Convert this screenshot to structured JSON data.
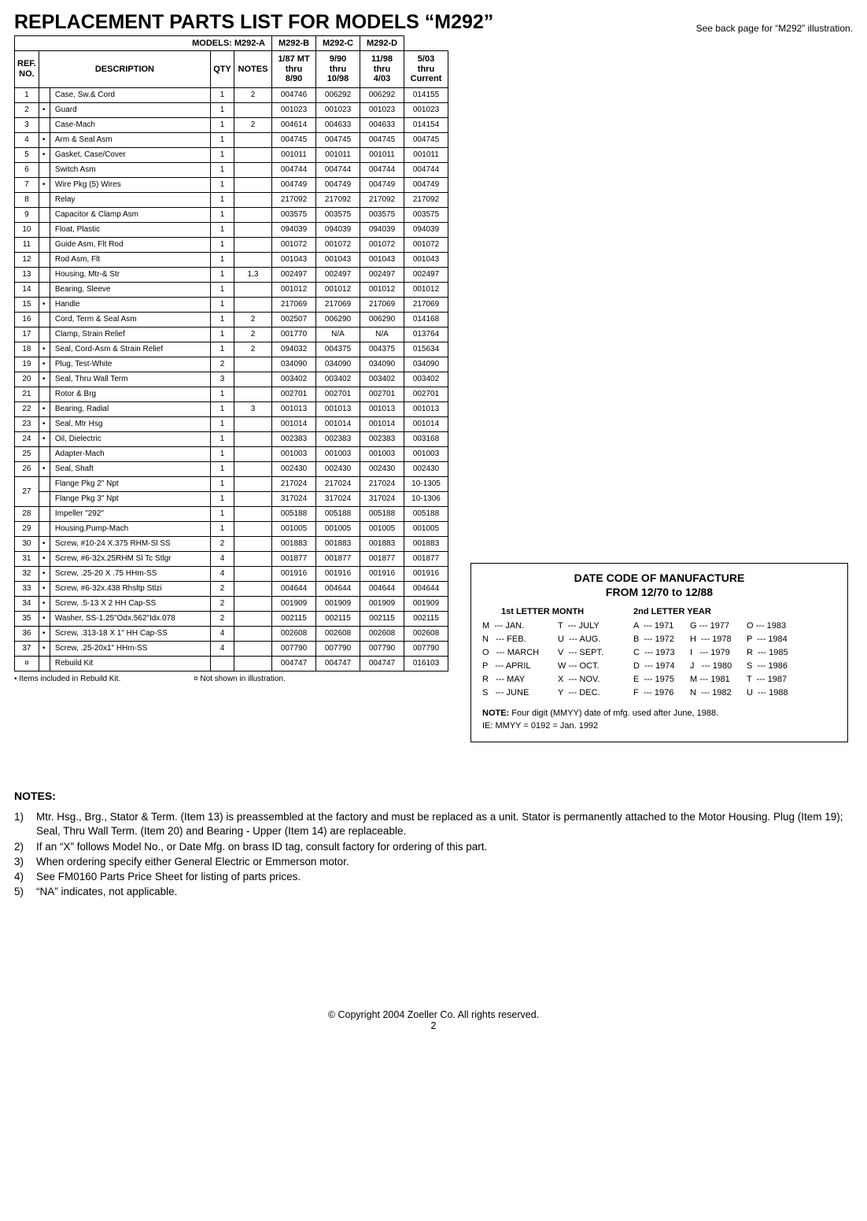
{
  "title": "REPLACEMENT PARTS LIST FOR MODELS “M292”",
  "see_back": "See back page for “M292” illustration.",
  "table": {
    "models_label": "MODELS: M292-A",
    "models": [
      "M292-B",
      "M292-C",
      "M292-D"
    ],
    "headers": {
      "ref": "REF.\nNO.",
      "desc": "DESCRIPTION",
      "qty": "QTY",
      "notes": "NOTES",
      "pn": [
        "1/87 MT\nthru\n8/90",
        "9/90\nthru\n10/98",
        "11/98\nthru\n4/03",
        "5/03\nthru\nCurrent"
      ]
    },
    "rows": [
      {
        "ref": "1",
        "b": "",
        "desc": "Case, Sw.& Cord",
        "qty": "1",
        "notes": "2",
        "pn": [
          "004746",
          "006292",
          "006292",
          "014155"
        ]
      },
      {
        "ref": "2",
        "b": "•",
        "desc": "Guard",
        "qty": "1",
        "notes": "",
        "pn": [
          "001023",
          "001023",
          "001023",
          "001023"
        ]
      },
      {
        "ref": "3",
        "b": "",
        "desc": "Case-Mach",
        "qty": "1",
        "notes": "2",
        "pn": [
          "004614",
          "004633",
          "004633",
          "014154"
        ]
      },
      {
        "ref": "4",
        "b": "•",
        "desc": "Arm & Seal Asm",
        "qty": "1",
        "notes": "",
        "pn": [
          "004745",
          "004745",
          "004745",
          "004745"
        ]
      },
      {
        "ref": "5",
        "b": "•",
        "desc": "Gasket, Case/Cover",
        "qty": "1",
        "notes": "",
        "pn": [
          "001011",
          "001011",
          "001011",
          "001011"
        ]
      },
      {
        "ref": "6",
        "b": "",
        "desc": "Switch Asm",
        "qty": "1",
        "notes": "",
        "pn": [
          "004744",
          "004744",
          "004744",
          "004744"
        ]
      },
      {
        "ref": "7",
        "b": "•",
        "desc": "Wire Pkg (5) Wires",
        "qty": "1",
        "notes": "",
        "pn": [
          "004749",
          "004749",
          "004749",
          "004749"
        ]
      },
      {
        "ref": "8",
        "b": "",
        "desc": "Relay",
        "qty": "1",
        "notes": "",
        "pn": [
          "217092",
          "217092",
          "217092",
          "217092"
        ]
      },
      {
        "ref": "9",
        "b": "",
        "desc": "Capacitor & Clamp Asm",
        "qty": "1",
        "notes": "",
        "pn": [
          "003575",
          "003575",
          "003575",
          "003575"
        ]
      },
      {
        "ref": "10",
        "b": "",
        "desc": "Float, Plastic",
        "qty": "1",
        "notes": "",
        "pn": [
          "094039",
          "094039",
          "094039",
          "094039"
        ]
      },
      {
        "ref": "11",
        "b": "",
        "desc": "Guide Asm, Flt Rod",
        "qty": "1",
        "notes": "",
        "pn": [
          "001072",
          "001072",
          "001072",
          "001072"
        ]
      },
      {
        "ref": "12",
        "b": "",
        "desc": "Rod Asm, Flt",
        "qty": "1",
        "notes": "",
        "pn": [
          "001043",
          "001043",
          "001043",
          "001043"
        ]
      },
      {
        "ref": "13",
        "b": "",
        "desc": "Housing, Mtr-& Str",
        "qty": "1",
        "notes": "1,3",
        "pn": [
          "002497",
          "002497",
          "002497",
          "002497"
        ]
      },
      {
        "ref": "14",
        "b": "",
        "desc": "Bearing, Sleeve",
        "qty": "1",
        "notes": "",
        "pn": [
          "001012",
          "001012",
          "001012",
          "001012"
        ]
      },
      {
        "ref": "15",
        "b": "•",
        "desc": "Handle",
        "qty": "1",
        "notes": "",
        "pn": [
          "217069",
          "217069",
          "217069",
          "217069"
        ]
      },
      {
        "ref": "16",
        "b": "",
        "desc": "Cord, Term & Seal Asm",
        "qty": "1",
        "notes": "2",
        "pn": [
          "002507",
          "006290",
          "006290",
          "014168"
        ]
      },
      {
        "ref": "17",
        "b": "",
        "desc": "Clamp, Strain Relief",
        "qty": "1",
        "notes": "2",
        "pn": [
          "001770",
          "N/A",
          "N/A",
          "013764"
        ]
      },
      {
        "ref": "18",
        "b": "•",
        "desc": "Seal, Cord-Asm & Strain Relief",
        "qty": "1",
        "notes": "2",
        "pn": [
          "094032",
          "004375",
          "004375",
          "015634"
        ]
      },
      {
        "ref": "19",
        "b": "•",
        "desc": "Plug, Test-White",
        "qty": "2",
        "notes": "",
        "pn": [
          "034090",
          "034090",
          "034090",
          "034090"
        ]
      },
      {
        "ref": "20",
        "b": "•",
        "desc": "Seal, Thru Wall Term",
        "qty": "3",
        "notes": "",
        "pn": [
          "003402",
          "003402",
          "003402",
          "003402"
        ]
      },
      {
        "ref": "21",
        "b": "",
        "desc": "Rotor & Brg",
        "qty": "1",
        "notes": "",
        "pn": [
          "002701",
          "002701",
          "002701",
          "002701"
        ]
      },
      {
        "ref": "22",
        "b": "•",
        "desc": "Bearing, Radial",
        "qty": "1",
        "notes": "3",
        "pn": [
          "001013",
          "001013",
          "001013",
          "001013"
        ]
      },
      {
        "ref": "23",
        "b": "•",
        "desc": "Seal, Mtr Hsg",
        "qty": "1",
        "notes": "",
        "pn": [
          "001014",
          "001014",
          "001014",
          "001014"
        ]
      },
      {
        "ref": "24",
        "b": "•",
        "desc": "Oil, Dielectric",
        "qty": "1",
        "notes": "",
        "pn": [
          "002383",
          "002383",
          "002383",
          "003168"
        ]
      },
      {
        "ref": "25",
        "b": "",
        "desc": "Adapter-Mach",
        "qty": "1",
        "notes": "",
        "pn": [
          "001003",
          "001003",
          "001003",
          "001003"
        ]
      },
      {
        "ref": "26",
        "b": "•",
        "desc": "Seal, Shaft",
        "qty": "1",
        "notes": "",
        "pn": [
          "002430",
          "002430",
          "002430",
          "002430"
        ]
      },
      {
        "ref": "27",
        "b": "",
        "desc": "Flange Pkg 2\" Npt",
        "qty": "1",
        "notes": "",
        "pn": [
          "217024",
          "217024",
          "217024",
          "10-1305"
        ],
        "rowspan": 2
      },
      {
        "ref": "",
        "b": "",
        "desc": "Flange Pkg 3\" Npt",
        "qty": "1",
        "notes": "",
        "pn": [
          "317024",
          "317024",
          "317024",
          "10-1306"
        ],
        "skipref": true
      },
      {
        "ref": "28",
        "b": "",
        "desc": "Impeller \"292\"",
        "qty": "1",
        "notes": "",
        "pn": [
          "005188",
          "005188",
          "005188",
          "005188"
        ]
      },
      {
        "ref": "29",
        "b": "",
        "desc": "Housing,Pump-Mach",
        "qty": "1",
        "notes": "",
        "pn": [
          "001005",
          "001005",
          "001005",
          "001005"
        ]
      },
      {
        "ref": "30",
        "b": "•",
        "desc": "Screw, #10-24 X.375 RHM-Sl SS",
        "qty": "2",
        "notes": "",
        "pn": [
          "001883",
          "001883",
          "001883",
          "001883"
        ]
      },
      {
        "ref": "31",
        "b": "•",
        "desc": "Screw, #6-32x.25RHM Sl Tc Stlgr",
        "qty": "4",
        "notes": "",
        "pn": [
          "001877",
          "001877",
          "001877",
          "001877"
        ]
      },
      {
        "ref": "32",
        "b": "•",
        "desc": "Screw, .25-20 X .75 HHm-SS",
        "qty": "4",
        "notes": "",
        "pn": [
          "001916",
          "001916",
          "001916",
          "001916"
        ]
      },
      {
        "ref": "33",
        "b": "•",
        "desc": "Screw, #6-32x.438 Rhsltp Stlzi",
        "qty": "2",
        "notes": "",
        "pn": [
          "004644",
          "004644",
          "004644",
          "004644"
        ]
      },
      {
        "ref": "34",
        "b": "•",
        "desc": "Screw, .5-13 X 2 HH Cap-SS",
        "qty": "2",
        "notes": "",
        "pn": [
          "001909",
          "001909",
          "001909",
          "001909"
        ]
      },
      {
        "ref": "35",
        "b": "•",
        "desc": "Washer, SS-1.25\"Odx.562\"Idx.078",
        "qty": "2",
        "notes": "",
        "pn": [
          "002115",
          "002115",
          "002115",
          "002115"
        ]
      },
      {
        "ref": "36",
        "b": "•",
        "desc": "Screw, .313-18 X 1\" HH Cap-SS",
        "qty": "4",
        "notes": "",
        "pn": [
          "002608",
          "002608",
          "002608",
          "002608"
        ]
      },
      {
        "ref": "37",
        "b": "•",
        "desc": "Screw, .25-20x1\" HHm-SS",
        "qty": "4",
        "notes": "",
        "pn": [
          "007790",
          "007790",
          "007790",
          "007790"
        ]
      },
      {
        "ref": "¤",
        "b": "",
        "desc": "Rebuild Kit",
        "qty": "",
        "notes": "",
        "pn": [
          "004747",
          "004747",
          "004747",
          "016103"
        ]
      }
    ],
    "legend1": "• Items included in Rebuild Kit.",
    "legend2": "¤ Not shown in illustration."
  },
  "datecode": {
    "title1": "DATE CODE OF MANUFACTURE",
    "title2": "FROM 12/70 to 12/88",
    "h1": "1st LETTER MONTH",
    "h2": "2nd LETTER YEAR",
    "months1": [
      "M  --- JAN.",
      "N   --- FEB.",
      "O   --- MARCH",
      "P   --- APRIL",
      "R   --- MAY",
      "S   --- JUNE"
    ],
    "months2": [
      "T  --- JULY",
      "U  --- AUG.",
      "V  --- SEPT.",
      "W --- OCT.",
      "X  --- NOV.",
      "Y  --- DEC."
    ],
    "years1": [
      "A  --- 1971",
      "B  --- 1972",
      "C  --- 1973",
      "D  --- 1974",
      "E  --- 1975",
      "F  --- 1976"
    ],
    "years2": [
      "G --- 1977",
      "H  --- 1978",
      "I   --- 1979",
      "J   --- 1980",
      "M --- 1981",
      "N  --- 1982"
    ],
    "years3": [
      "O --- 1983",
      "P  --- 1984",
      "R  --- 1985",
      "S  --- 1986",
      "T  --- 1987",
      "U  --- 1988"
    ],
    "note_b": "NOTE:",
    "note1": " Four digit (MMYY) date of mfg. used after June, 1988.",
    "note2": "IE: MMYY = 0192 = Jan. 1992"
  },
  "notes": {
    "heading": "NOTES:",
    "items": [
      {
        "n": "1)",
        "t": "Mtr. Hsg., Brg., Stator & Term.  (Item 13) is preassembled at the factory and must be replaced as a unit.  Stator is permanently attached to the Motor Housing.  Plug (Item 19); Seal, Thru Wall Term.  (Item 20) and Bearing - Upper (Item 14) are replaceable."
      },
      {
        "n": "2)",
        "t": "If an “X” follows Model No., or Date Mfg. on brass ID tag, consult factory for ordering of this part."
      },
      {
        "n": "3)",
        "t": "When ordering specify either General Electric or Emmerson motor."
      },
      {
        "n": "4)",
        "t": "See FM0160 Parts Price Sheet for listing of parts prices."
      },
      {
        "n": "5)",
        "t": "“NA” indicates, not applicable."
      }
    ]
  },
  "footer": {
    "copyright": "© Copyright 2004 Zoeller Co. All rights reserved.",
    "page": "2"
  }
}
